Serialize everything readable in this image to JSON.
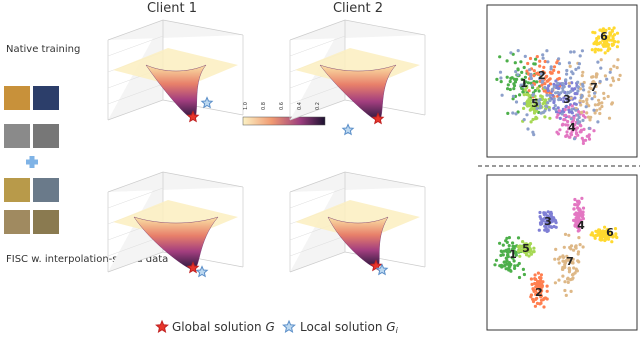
{
  "columns": [
    "Client 1",
    "Client 2"
  ],
  "rows": [
    "Native training",
    "FISC w. interpolation-styled data"
  ],
  "colorbar": {
    "ticks": [
      "1.0",
      "0.8",
      "0.6",
      "0.4",
      "0.2"
    ]
  },
  "legend": [
    {
      "label": "Global solution",
      "symbol": "G"
    },
    {
      "label": "Local solution",
      "symbol": "G",
      "subscript": "i"
    }
  ],
  "tsne_top": {
    "labels": [
      "1",
      "2",
      "3",
      "4",
      "5",
      "6",
      "7"
    ]
  },
  "tsne_bottom": {
    "labels": [
      "1",
      "2",
      "3",
      "4",
      "5",
      "6",
      "7"
    ]
  }
}
